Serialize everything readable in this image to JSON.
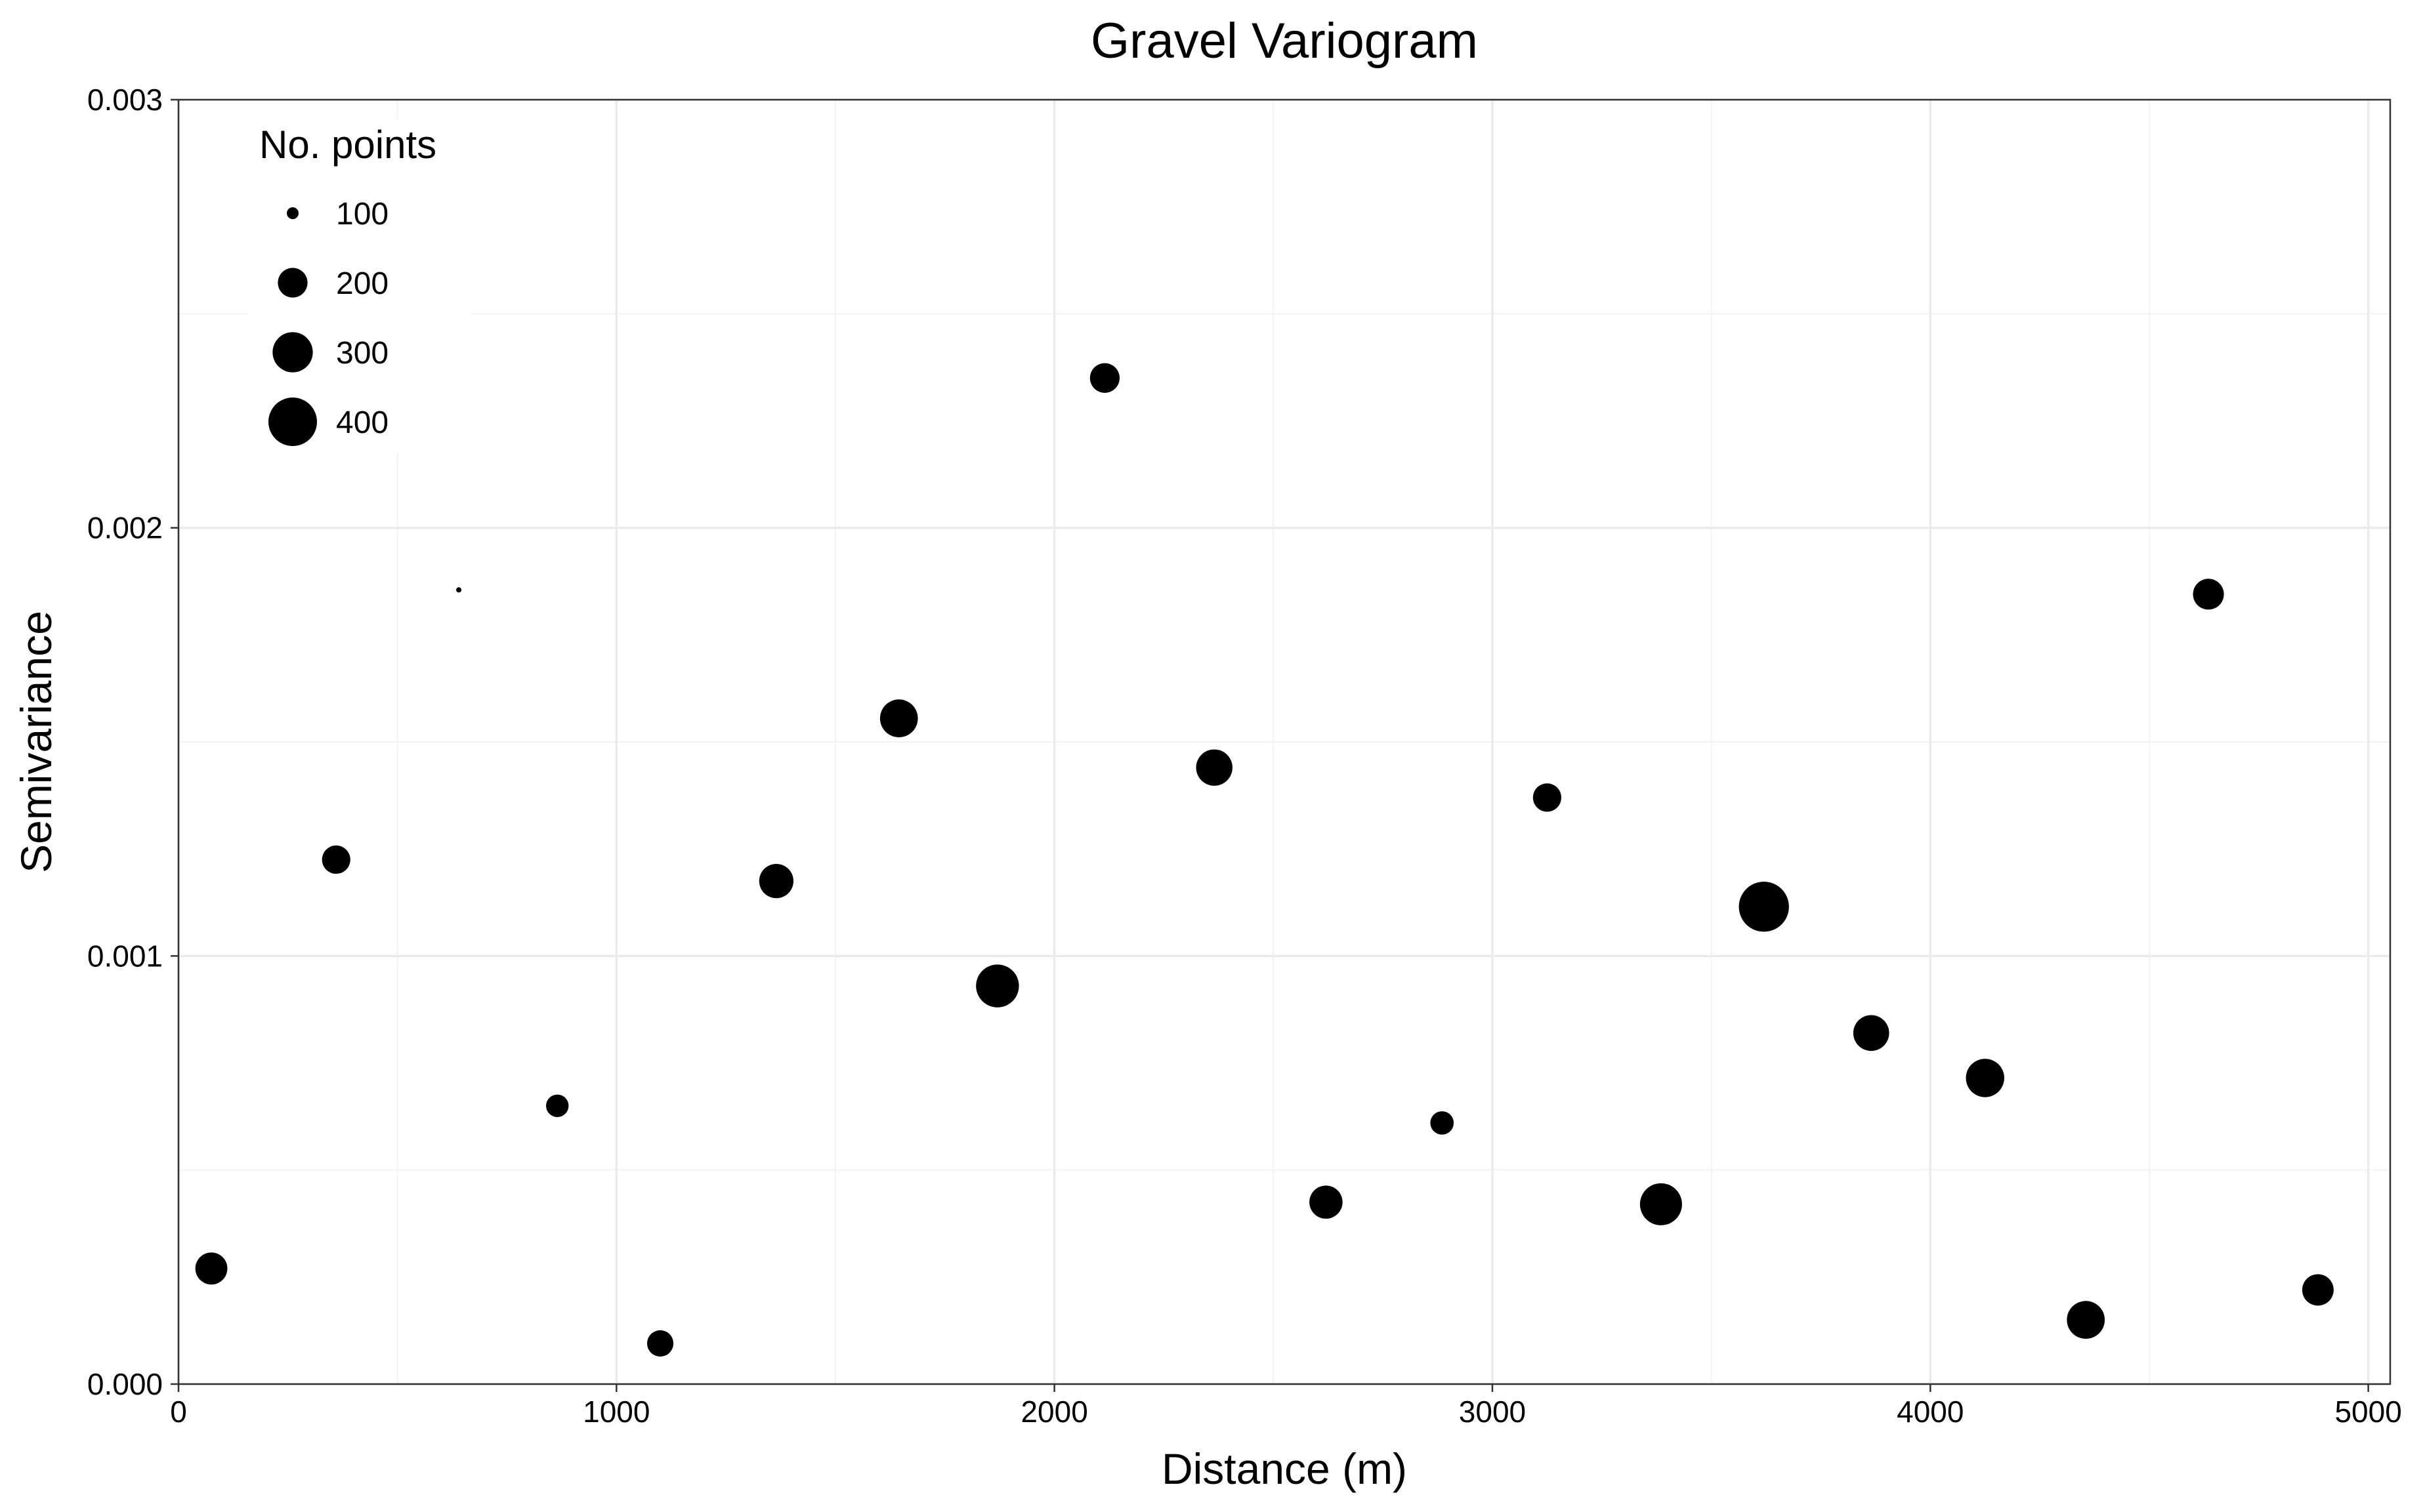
{
  "chart_data": {
    "type": "scatter",
    "title": "Gravel Variogram",
    "xlabel": "Distance (m)",
    "ylabel": "Semivariance",
    "xlim": [
      0,
      5050
    ],
    "ylim": [
      0,
      0.003
    ],
    "x_ticks": [
      0,
      1000,
      2000,
      3000,
      4000,
      5000
    ],
    "x_tick_labels": [
      "0",
      "1000",
      "2000",
      "3000",
      "4000",
      "5000"
    ],
    "y_ticks": [
      0,
      0.001,
      0.002,
      0.003
    ],
    "y_tick_labels": [
      "0.000",
      "0.001",
      "0.002",
      "0.003"
    ],
    "grid": true,
    "legend": {
      "title": "No. points",
      "placement": "top-left",
      "entries": [
        {
          "label": "100",
          "size": 100
        },
        {
          "label": "200",
          "size": 200
        },
        {
          "label": "300",
          "size": 300
        },
        {
          "label": "400",
          "size": 400
        }
      ]
    },
    "size_range": [
      100,
      400
    ],
    "color": "#000000",
    "points": [
      {
        "x": 75,
        "y": 0.00027,
        "n": 220
      },
      {
        "x": 360,
        "y": 0.001225,
        "n": 190
      },
      {
        "x": 640,
        "y": 0.001855,
        "n": 40
      },
      {
        "x": 865,
        "y": 0.00065,
        "n": 150
      },
      {
        "x": 1100,
        "y": 9.5e-05,
        "n": 175
      },
      {
        "x": 1365,
        "y": 0.001175,
        "n": 240
      },
      {
        "x": 1645,
        "y": 0.001555,
        "n": 275
      },
      {
        "x": 1870,
        "y": 0.00093,
        "n": 330
      },
      {
        "x": 2115,
        "y": 0.00235,
        "n": 200
      },
      {
        "x": 2365,
        "y": 0.00144,
        "n": 260
      },
      {
        "x": 2620,
        "y": 0.000425,
        "n": 230
      },
      {
        "x": 2885,
        "y": 0.00061,
        "n": 155
      },
      {
        "x": 3125,
        "y": 0.00137,
        "n": 190
      },
      {
        "x": 3385,
        "y": 0.00042,
        "n": 320
      },
      {
        "x": 3620,
        "y": 0.001115,
        "n": 420
      },
      {
        "x": 3865,
        "y": 0.00082,
        "n": 255
      },
      {
        "x": 4125,
        "y": 0.000715,
        "n": 280
      },
      {
        "x": 4355,
        "y": 0.00015,
        "n": 275
      },
      {
        "x": 4635,
        "y": 0.001845,
        "n": 210
      },
      {
        "x": 4885,
        "y": 0.00022,
        "n": 215
      }
    ]
  }
}
